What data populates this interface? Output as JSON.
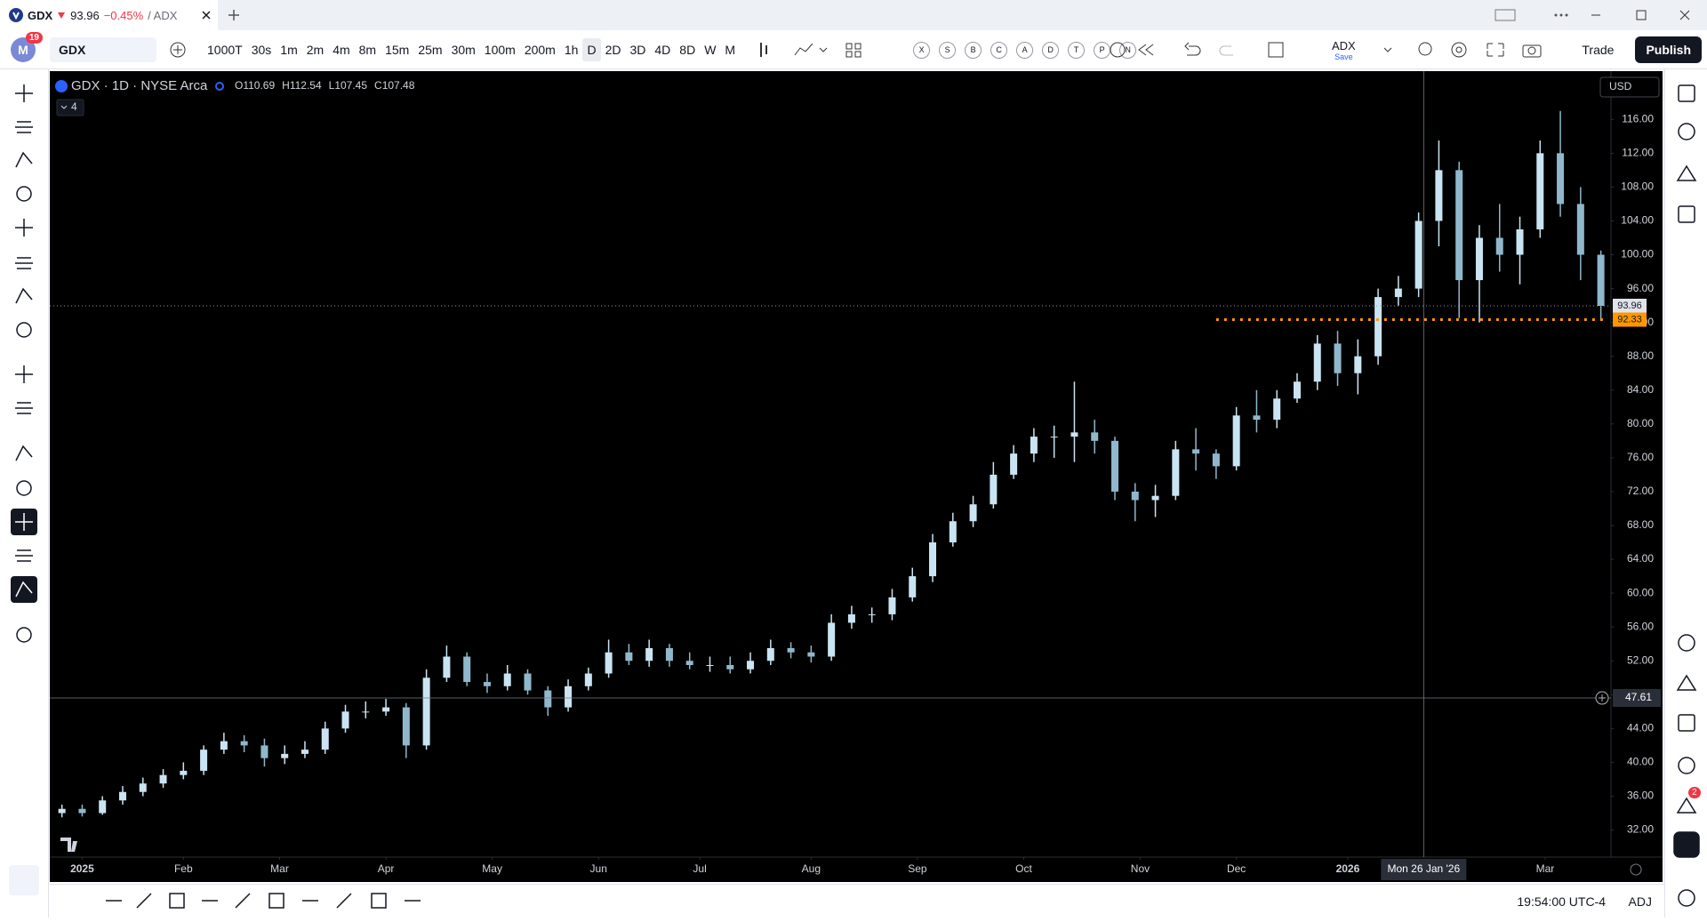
{
  "tab": {
    "symbol": "GDX",
    "change": "−0.45%",
    "suffix": "/ ADX"
  },
  "toolbar": {
    "avatar": "M",
    "avatar_badge": "19",
    "symbol": "GDX",
    "intervals": [
      "1000T",
      "30s",
      "1m",
      "2m",
      "4m",
      "8m",
      "15m",
      "25m",
      "30m",
      "100m",
      "200m",
      "1h",
      "D",
      "2D",
      "3D",
      "4D",
      "8D",
      "W",
      "M"
    ],
    "letters": [
      "X",
      "S",
      "B",
      "C",
      "A",
      "D",
      "T",
      "P",
      "N"
    ],
    "indicator": "ADX",
    "indicator_sub": "Save",
    "trade": "Trade",
    "publish": "Publish"
  },
  "legend": {
    "title": "GDX · 1D · NYSE Arca",
    "labels": [
      "O",
      "H",
      "L",
      "C"
    ],
    "values": [
      110.69,
      112.54,
      107.45,
      107.48
    ],
    "collapse": "4"
  },
  "currency": "USD",
  "sidebar": {
    "alerts_badge": "2"
  },
  "status": {
    "time": "19:54:00 UTC-4",
    "adj": "ADJ"
  },
  "chart_data": {
    "type": "candlestick",
    "up_color": "#c9e4f2",
    "down_color": "#8fb8cc",
    "x": [
      -4,
      0,
      4,
      8,
      12,
      16,
      20,
      24,
      28,
      32,
      36,
      40,
      44,
      48,
      52,
      56,
      60,
      64,
      68,
      72,
      76,
      80,
      84,
      88,
      92,
      96,
      100,
      104,
      108,
      112,
      116,
      120,
      124,
      128,
      132,
      136,
      140,
      144,
      148,
      152,
      156,
      160,
      164,
      168,
      172,
      176,
      180,
      184,
      188,
      192,
      196,
      200,
      204,
      208,
      212,
      216,
      220,
      224,
      228,
      232,
      236,
      240,
      244,
      248,
      252,
      256,
      260,
      264,
      268,
      272,
      276,
      280,
      284,
      288,
      292,
      296,
      300
    ],
    "open": [
      34,
      34.5,
      34,
      35.5,
      36.5,
      37.5,
      38.5,
      39,
      41.5,
      42.5,
      42,
      40.5,
      41,
      41.5,
      44,
      46,
      46,
      46.5,
      42,
      50,
      52.5,
      49.5,
      49,
      50.5,
      48.5,
      46.5,
      49,
      50.5,
      53,
      52,
      53.5,
      52,
      51.5,
      51.5,
      51,
      52,
      53.5,
      53,
      52.5,
      56.5,
      57.5,
      57.5,
      59.5,
      62,
      66,
      68.5,
      70.5,
      74,
      76.5,
      78.5,
      78.5,
      79,
      78,
      72,
      71,
      71.5,
      77,
      76.5,
      75,
      81,
      80.5,
      83,
      85,
      89.5,
      86,
      88,
      95,
      96,
      104,
      110,
      97,
      102,
      100,
      103,
      112,
      106,
      100
    ],
    "high": [
      35,
      35,
      36,
      37.2,
      38.2,
      39.2,
      40,
      42,
      43.5,
      43.2,
      42.8,
      42,
      42.5,
      44.8,
      46.8,
      47.2,
      47.5,
      47,
      51,
      53.8,
      53,
      50.5,
      51.5,
      51,
      49,
      49.8,
      51.2,
      54.5,
      54,
      54.5,
      54,
      53,
      52.5,
      52.5,
      53,
      54.5,
      54.2,
      53.8,
      57.5,
      58.5,
      58.3,
      60.5,
      63,
      67,
      69.5,
      71.5,
      75.5,
      77.5,
      79.5,
      79.8,
      85,
      80.5,
      78.5,
      73,
      72.8,
      78,
      79.5,
      77,
      82,
      84,
      84,
      86,
      90.5,
      91,
      90,
      96,
      97.5,
      105,
      113.5,
      111,
      103.5,
      106,
      104.5,
      113.5,
      117,
      108,
      100.5
    ],
    "low": [
      33.5,
      33.6,
      33.8,
      35,
      36,
      37,
      38,
      38.5,
      41,
      41.2,
      39.5,
      39.8,
      40.5,
      41,
      43.5,
      45.2,
      45.5,
      40.5,
      41.5,
      49.5,
      49,
      48.2,
      48.5,
      48,
      45.5,
      46,
      48.5,
      50,
      51.5,
      51.3,
      51.3,
      51,
      50.7,
      50.5,
      50.5,
      51.5,
      52.3,
      51.8,
      52,
      55.8,
      56.5,
      56.8,
      59,
      61.3,
      65.5,
      67.8,
      70,
      73.5,
      75.5,
      76,
      75.5,
      76.5,
      71,
      68.5,
      69,
      71,
      74.5,
      73.5,
      74.5,
      79,
      79.5,
      82.5,
      84,
      84.5,
      83.5,
      87,
      94,
      95,
      101,
      92.5,
      92,
      98,
      96.5,
      102,
      104.5,
      97,
      92.3
    ],
    "close": [
      34.5,
      34,
      35.5,
      36.5,
      37.5,
      38.5,
      39,
      41.5,
      42.5,
      42,
      40.5,
      41,
      41.5,
      44,
      46,
      46,
      46.5,
      42,
      50,
      52.5,
      49.5,
      49,
      50.5,
      48.5,
      46.5,
      49,
      50.5,
      53,
      52,
      53.5,
      52,
      51.5,
      51.5,
      51,
      52,
      53.5,
      53,
      52.5,
      56.5,
      57.5,
      57.5,
      59.5,
      62,
      66,
      68.5,
      70.5,
      74,
      76.5,
      78.5,
      78.5,
      79,
      78,
      72,
      71,
      71.5,
      77,
      76.5,
      75,
      81,
      80.5,
      83,
      85,
      89.5,
      86,
      88,
      95,
      96,
      104,
      110,
      97,
      102,
      100,
      103,
      112,
      106,
      100,
      93.96
    ],
    "xlim": [
      -6.4,
      302
    ],
    "ylim": [
      28.8,
      121.6
    ],
    "xticks": [
      {
        "value": 0,
        "label": "2025"
      },
      {
        "value": 20,
        "label": "Feb"
      },
      {
        "value": 39,
        "label": "Mar"
      },
      {
        "value": 60,
        "label": "Apr"
      },
      {
        "value": 81,
        "label": "May"
      },
      {
        "value": 102,
        "label": "Jun"
      },
      {
        "value": 122,
        "label": "Jul"
      },
      {
        "value": 144,
        "label": "Aug"
      },
      {
        "value": 165,
        "label": "Sep"
      },
      {
        "value": 186,
        "label": "Oct"
      },
      {
        "value": 209,
        "label": "Nov"
      },
      {
        "value": 228,
        "label": "Dec"
      },
      {
        "value": 250,
        "label": "2026"
      },
      {
        "value": 289,
        "label": "Mar"
      }
    ],
    "yticks": [
      {
        "value": 32,
        "label": "32.00"
      },
      {
        "value": 36,
        "label": "36.00"
      },
      {
        "value": 40,
        "label": "40.00"
      },
      {
        "value": 44,
        "label": "44.00"
      },
      {
        "value": 48,
        "label": "48.00"
      },
      {
        "value": 52,
        "label": "52.00"
      },
      {
        "value": 56,
        "label": "56.00"
      },
      {
        "value": 60,
        "label": "60.00"
      },
      {
        "value": 64,
        "label": "64.00"
      },
      {
        "value": 68,
        "label": "68.00"
      },
      {
        "value": 72,
        "label": "72.00"
      },
      {
        "value": 76,
        "label": "76.00"
      },
      {
        "value": 80,
        "label": "80.00"
      },
      {
        "value": 84,
        "label": "84.00"
      },
      {
        "value": 88,
        "label": "88.00"
      },
      {
        "value": 92,
        "label": "92.00"
      },
      {
        "value": 96,
        "label": "96.00"
      },
      {
        "value": 100,
        "label": "100.00"
      },
      {
        "value": 104,
        "label": "104.00"
      },
      {
        "value": 108,
        "label": "108.00"
      },
      {
        "value": 112,
        "label": "112.00"
      },
      {
        "value": 116,
        "label": "116.00"
      }
    ],
    "grid": false,
    "last_price": 93.96,
    "hline": {
      "value": 92.33,
      "x_start": 224,
      "color": "#ff9800"
    },
    "crosshair": {
      "x": 265,
      "y": 47.61,
      "x_label": "Mon 26 Jan '26"
    }
  }
}
